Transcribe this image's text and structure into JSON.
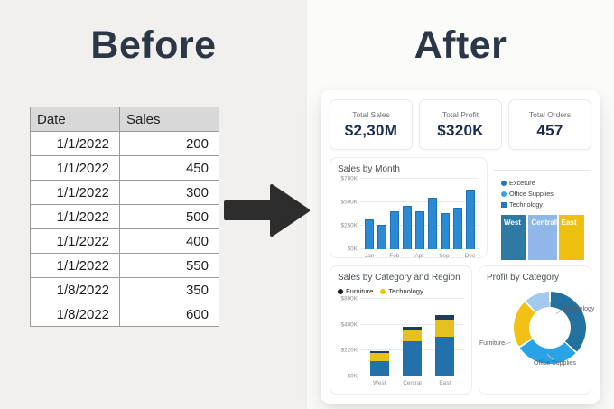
{
  "before": {
    "title": "Before",
    "table": {
      "headers": [
        "Date",
        "Sales"
      ],
      "rows": [
        [
          "1/1/2022",
          "200"
        ],
        [
          "1/1/2022",
          "450"
        ],
        [
          "1/1/2022",
          "300"
        ],
        [
          "1/1/2022",
          "500"
        ],
        [
          "1/1/2022",
          "400"
        ],
        [
          "1/1/2022",
          "550"
        ],
        [
          "1/8/2022",
          "350"
        ],
        [
          "1/8/2022",
          "600"
        ]
      ]
    }
  },
  "after": {
    "title": "After",
    "kpis": [
      {
        "label": "Total Sales",
        "value": "$2,30M"
      },
      {
        "label": "Total Profit",
        "value": "$320K"
      },
      {
        "label": "Total Orders",
        "value": "457"
      }
    ]
  },
  "colors": {
    "bar_blue": "#2b8ad6",
    "stack_blue": "#2270ac",
    "stack_yellow": "#e5c020",
    "stack_navy": "#1d3d5e",
    "kpi_navy": "#1c2c4e"
  },
  "chart_data": [
    {
      "type": "bar",
      "title": "Sales by Month",
      "values": [
        320,
        255,
        400,
        460,
        400,
        550,
        385,
        445,
        650
      ],
      "bar_labels": [
        "Jan",
        "",
        "Feb",
        "",
        "Apr",
        "",
        "Sep",
        "",
        "Dec"
      ],
      "yticks": [
        0,
        250,
        500,
        780
      ],
      "ytick_labels": [
        "$0K",
        "$250K",
        "$500K",
        "$780K"
      ],
      "bar_color": "#2b8ad6",
      "ylabel": "",
      "xlabel": "",
      "grid": true,
      "units": "$K"
    },
    {
      "type": "treemap",
      "legend": [
        {
          "label": "Exceture",
          "color": "#1f78c8",
          "shape": "dot"
        },
        {
          "label": "Office Supplies",
          "color": "#3fa0e4",
          "shape": "dot"
        },
        {
          "label": "Technology",
          "color": "#1f78c8",
          "shape": "square"
        }
      ],
      "blocks": [
        {
          "label": "West",
          "color": "#2e7aa3",
          "size": 32
        },
        {
          "label": "Centrall",
          "color": "#8fb7e7",
          "size": 36
        },
        {
          "label": "East",
          "color": "#eec00e",
          "size": 32
        }
      ]
    },
    {
      "type": "bar-stacked",
      "title": "Sales by Category and Region",
      "categories": [
        "West",
        "Central",
        "East"
      ],
      "series": [
        {
          "name": "Furniture",
          "color": "#2270ac",
          "values": [
            230,
            350,
            350
          ]
        },
        {
          "name": "Technology",
          "color": "#e5c020",
          "values": [
            100,
            150,
            230
          ]
        },
        {
          "name": "",
          "color": "#1d3d5e",
          "values": [
            20,
            60,
            90
          ]
        }
      ],
      "yticks": [
        0,
        220,
        400,
        800
      ],
      "ytick_labels": [
        "$0K",
        "$220K",
        "$400K",
        "$800K"
      ],
      "legend": [
        {
          "label": "Furniture",
          "color": "#1b1b1b",
          "shape": "dot"
        },
        {
          "label": "Technology",
          "color": "#f2c20d",
          "shape": "dot"
        }
      ],
      "grid": true,
      "units": "$K"
    },
    {
      "type": "donut",
      "title": "Profit by Category",
      "slices": [
        {
          "label": "Technology",
          "value": 37,
          "color": "#23719f"
        },
        {
          "label": "Office Supplies",
          "value": 29,
          "color": "#2aa2e6"
        },
        {
          "label": "Furniture",
          "value": 22,
          "color": "#f3c115"
        },
        {
          "label": "",
          "value": 12,
          "color": "#a3c9ec"
        }
      ]
    }
  ]
}
